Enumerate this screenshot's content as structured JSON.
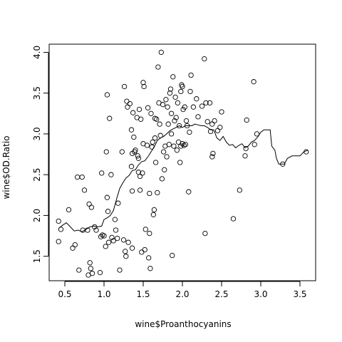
{
  "chart_data": {
    "type": "scatter",
    "title": "",
    "xlabel": "wine$Proanthocyanins",
    "ylabel": "wine$OD.Ratio",
    "xlim": [
      0.3,
      3.7
    ],
    "ylim": [
      1.2,
      4.1
    ],
    "x_ticks": [
      "0.5",
      "1.0",
      "1.5",
      "2.0",
      "2.5",
      "3.0",
      "3.5"
    ],
    "y_ticks": [
      "1.5",
      "2.0",
      "2.5",
      "3.0",
      "3.5",
      "4.0"
    ],
    "grid": false,
    "legend": "none",
    "series": [
      {
        "kind": "points",
        "marker": "open-circle",
        "points": [
          [
            0.42,
            1.93
          ],
          [
            0.42,
            1.68
          ],
          [
            0.45,
            1.83
          ],
          [
            0.55,
            2.07
          ],
          [
            0.6,
            1.6
          ],
          [
            0.63,
            1.64
          ],
          [
            0.66,
            2.47
          ],
          [
            0.68,
            1.33
          ],
          [
            0.72,
            2.47
          ],
          [
            0.73,
            1.82
          ],
          [
            0.75,
            2.31
          ],
          [
            0.79,
            1.82
          ],
          [
            0.8,
            1.27
          ],
          [
            0.81,
            2.14
          ],
          [
            0.82,
            1.42
          ],
          [
            0.83,
            1.35
          ],
          [
            0.84,
            2.1
          ],
          [
            0.85,
            1.29
          ],
          [
            0.88,
            1.86
          ],
          [
            0.9,
            1.82
          ],
          [
            0.95,
            1.3
          ],
          [
            0.96,
            1.74
          ],
          [
            0.97,
            2.52
          ],
          [
            0.98,
            1.76
          ],
          [
            1.0,
            1.75
          ],
          [
            1.02,
            1.62
          ],
          [
            1.03,
            2.78
          ],
          [
            1.04,
            3.48
          ],
          [
            1.04,
            2.22
          ],
          [
            1.05,
            2.05
          ],
          [
            1.06,
            1.67
          ],
          [
            1.07,
            3.19
          ],
          [
            1.09,
            2.5
          ],
          [
            1.1,
            1.73
          ],
          [
            1.12,
            1.69
          ],
          [
            1.14,
            1.95
          ],
          [
            1.15,
            1.82
          ],
          [
            1.17,
            1.72
          ],
          [
            1.18,
            2.15
          ],
          [
            1.2,
            1.33
          ],
          [
            1.23,
            2.78
          ],
          [
            1.25,
            1.7
          ],
          [
            1.26,
            3.58
          ],
          [
            1.27,
            1.56
          ],
          [
            1.28,
            1.5
          ],
          [
            1.29,
            3.4
          ],
          [
            1.3,
            3.33
          ],
          [
            1.31,
            1.67
          ],
          [
            1.33,
            3.37
          ],
          [
            1.35,
            3.05
          ],
          [
            1.35,
            2.6
          ],
          [
            1.36,
            2.76
          ],
          [
            1.36,
            2.3
          ],
          [
            1.36,
            1.6
          ],
          [
            1.37,
            3.26
          ],
          [
            1.38,
            2.96
          ],
          [
            1.39,
            2.78
          ],
          [
            1.4,
            2.8
          ],
          [
            1.42,
            3.2
          ],
          [
            1.43,
            2.73
          ],
          [
            1.44,
            2.7
          ],
          [
            1.44,
            2.53
          ],
          [
            1.45,
            3.3
          ],
          [
            1.46,
            2.48
          ],
          [
            1.46,
            2.31
          ],
          [
            1.47,
            3.18
          ],
          [
            1.48,
            1.55
          ],
          [
            1.49,
            2.52
          ],
          [
            1.5,
            3.63
          ],
          [
            1.5,
            2.88
          ],
          [
            1.51,
            3.58
          ],
          [
            1.52,
            1.58
          ],
          [
            1.53,
            1.83
          ],
          [
            1.55,
            2.86
          ],
          [
            1.56,
            3.32
          ],
          [
            1.57,
            1.48
          ],
          [
            1.58,
            1.78
          ],
          [
            1.58,
            2.27
          ],
          [
            1.59,
            1.35
          ],
          [
            1.6,
            3.25
          ],
          [
            1.61,
            2.84
          ],
          [
            1.62,
            2.9
          ],
          [
            1.63,
            2.01
          ],
          [
            1.64,
            2.07
          ],
          [
            1.65,
            3.19
          ],
          [
            1.65,
            2.95
          ],
          [
            1.66,
            2.65
          ],
          [
            1.67,
            3.18
          ],
          [
            1.68,
            2.28
          ],
          [
            1.69,
            3.82
          ],
          [
            1.7,
            3.38
          ],
          [
            1.71,
            3.12
          ],
          [
            1.72,
            2.98
          ],
          [
            1.73,
            4.0
          ],
          [
            1.74,
            2.45
          ],
          [
            1.75,
            3.36
          ],
          [
            1.76,
            2.78
          ],
          [
            1.77,
            2.56
          ],
          [
            1.78,
            2.85
          ],
          [
            1.79,
            3.42
          ],
          [
            1.8,
            2.72
          ],
          [
            1.81,
            3.33
          ],
          [
            1.82,
            3.12
          ],
          [
            1.83,
            2.87
          ],
          [
            1.84,
            3.5
          ],
          [
            1.85,
            3.55
          ],
          [
            1.86,
            3.25
          ],
          [
            1.86,
            3.0
          ],
          [
            1.87,
            1.51
          ],
          [
            1.88,
            3.7
          ],
          [
            1.89,
            2.85
          ],
          [
            1.9,
            3.16
          ],
          [
            1.91,
            3.45
          ],
          [
            1.92,
            3.2
          ],
          [
            1.93,
            2.8
          ],
          [
            1.94,
            3.38
          ],
          [
            1.95,
            2.9
          ],
          [
            1.96,
            3.1
          ],
          [
            1.97,
            2.65
          ],
          [
            1.98,
            3.52
          ],
          [
            1.98,
            2.85
          ],
          [
            1.99,
            3.6
          ],
          [
            2.0,
            2.88
          ],
          [
            2.0,
            3.58
          ],
          [
            2.01,
            3.3
          ],
          [
            2.02,
            2.86
          ],
          [
            2.03,
            3.33
          ],
          [
            2.04,
            2.87
          ],
          [
            2.05,
            3.16
          ],
          [
            2.06,
            3.1
          ],
          [
            2.08,
            2.29
          ],
          [
            2.09,
            3.02
          ],
          [
            2.1,
            3.52
          ],
          [
            2.11,
            3.72
          ],
          [
            2.14,
            3.33
          ],
          [
            2.18,
            3.43
          ],
          [
            2.2,
            3.21
          ],
          [
            2.25,
            3.34
          ],
          [
            2.28,
            3.92
          ],
          [
            2.29,
            1.78
          ],
          [
            2.3,
            3.38
          ],
          [
            2.32,
            3.15
          ],
          [
            2.35,
            3.38
          ],
          [
            2.36,
            3.03
          ],
          [
            2.38,
            3.12
          ],
          [
            2.38,
            2.72
          ],
          [
            2.39,
            2.76
          ],
          [
            2.41,
            3.16
          ],
          [
            2.45,
            3.04
          ],
          [
            2.48,
            3.08
          ],
          [
            2.5,
            3.27
          ],
          [
            2.65,
            1.96
          ],
          [
            2.73,
            2.31
          ],
          [
            2.8,
            2.73
          ],
          [
            2.81,
            2.82
          ],
          [
            2.82,
            3.17
          ],
          [
            2.91,
            3.64
          ],
          [
            2.92,
            2.87
          ],
          [
            2.95,
            3.0
          ],
          [
            3.28,
            2.63
          ],
          [
            3.58,
            2.78
          ]
        ]
      },
      {
        "kind": "line",
        "points": [
          [
            0.42,
            1.84
          ],
          [
            0.47,
            1.88
          ],
          [
            0.52,
            1.91
          ],
          [
            0.57,
            1.86
          ],
          [
            0.62,
            1.81
          ],
          [
            0.67,
            1.82
          ],
          [
            0.72,
            1.8
          ],
          [
            0.77,
            1.83
          ],
          [
            0.82,
            1.86
          ],
          [
            0.87,
            1.87
          ],
          [
            0.92,
            1.86
          ],
          [
            0.97,
            1.87
          ],
          [
            1.0,
            1.95
          ],
          [
            1.04,
            1.97
          ],
          [
            1.08,
            2.0
          ],
          [
            1.12,
            2.06
          ],
          [
            1.16,
            2.2
          ],
          [
            1.2,
            2.33
          ],
          [
            1.24,
            2.4
          ],
          [
            1.28,
            2.46
          ],
          [
            1.32,
            2.49
          ],
          [
            1.36,
            2.55
          ],
          [
            1.4,
            2.56
          ],
          [
            1.44,
            2.62
          ],
          [
            1.48,
            2.66
          ],
          [
            1.52,
            2.67
          ],
          [
            1.56,
            2.72
          ],
          [
            1.6,
            2.78
          ],
          [
            1.64,
            2.84
          ],
          [
            1.68,
            2.92
          ],
          [
            1.72,
            2.95
          ],
          [
            1.76,
            2.97
          ],
          [
            1.8,
            3.0
          ],
          [
            1.84,
            3.04
          ],
          [
            1.88,
            3.06
          ],
          [
            1.92,
            3.08
          ],
          [
            1.96,
            3.1
          ],
          [
            2.0,
            3.08
          ],
          [
            2.04,
            3.1
          ],
          [
            2.08,
            3.1
          ],
          [
            2.12,
            3.1
          ],
          [
            2.16,
            3.12
          ],
          [
            2.2,
            3.11
          ],
          [
            2.24,
            3.1
          ],
          [
            2.28,
            3.1
          ],
          [
            2.32,
            3.08
          ],
          [
            2.36,
            3.05
          ],
          [
            2.4,
            3.05
          ],
          [
            2.44,
            2.95
          ],
          [
            2.48,
            2.92
          ],
          [
            2.52,
            2.97
          ],
          [
            2.56,
            2.9
          ],
          [
            2.6,
            2.86
          ],
          [
            2.64,
            2.87
          ],
          [
            2.68,
            2.83
          ],
          [
            2.72,
            2.86
          ],
          [
            2.76,
            2.88
          ],
          [
            2.8,
            2.83
          ],
          [
            2.84,
            2.85
          ],
          [
            2.88,
            2.9
          ],
          [
            2.92,
            2.92
          ],
          [
            2.96,
            2.96
          ],
          [
            3.0,
            3.02
          ],
          [
            3.04,
            3.05
          ],
          [
            3.08,
            3.05
          ],
          [
            3.12,
            3.05
          ],
          [
            3.14,
            2.85
          ],
          [
            3.18,
            2.8
          ],
          [
            3.2,
            2.7
          ],
          [
            3.23,
            2.63
          ],
          [
            3.3,
            2.63
          ],
          [
            3.34,
            2.7
          ],
          [
            3.4,
            2.73
          ],
          [
            3.5,
            2.73
          ],
          [
            3.55,
            2.78
          ],
          [
            3.6,
            2.8
          ]
        ]
      }
    ]
  }
}
